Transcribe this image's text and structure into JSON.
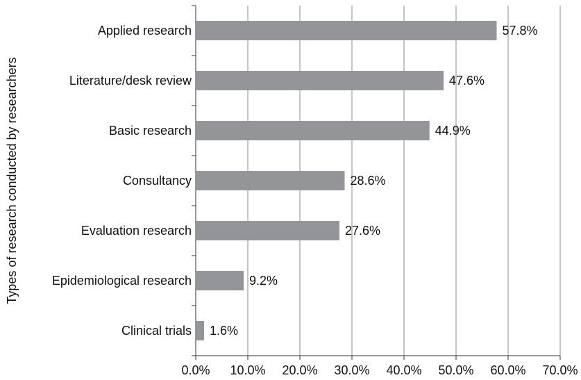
{
  "chart_data": {
    "type": "bar",
    "orientation": "horizontal",
    "y_label": "Types of research conducted by researchers",
    "categories": [
      "Applied research",
      "Literature/desk review",
      "Basic research",
      "Consultancy",
      "Evaluation research",
      "Epidemiological research",
      "Clinical trials"
    ],
    "values": [
      57.8,
      47.6,
      44.9,
      28.6,
      27.6,
      9.2,
      1.6
    ],
    "value_labels": [
      "57.8%",
      "47.6%",
      "44.9%",
      "28.6%",
      "27.6%",
      "9.2%",
      "1.6%"
    ],
    "color": "#939598",
    "xlim": [
      0,
      70
    ],
    "xticks": [
      {
        "value": 0,
        "label": "0.0%"
      },
      {
        "value": 10,
        "label": "10.0%"
      },
      {
        "value": 20,
        "label": "20.0%"
      },
      {
        "value": 30,
        "label": "30.0%"
      },
      {
        "value": 40,
        "label": "40.0%"
      },
      {
        "value": 50,
        "label": "50.0%"
      },
      {
        "value": 60,
        "label": "60.0%"
      },
      {
        "value": 70,
        "label": "70.0%"
      }
    ],
    "grid": true
  }
}
